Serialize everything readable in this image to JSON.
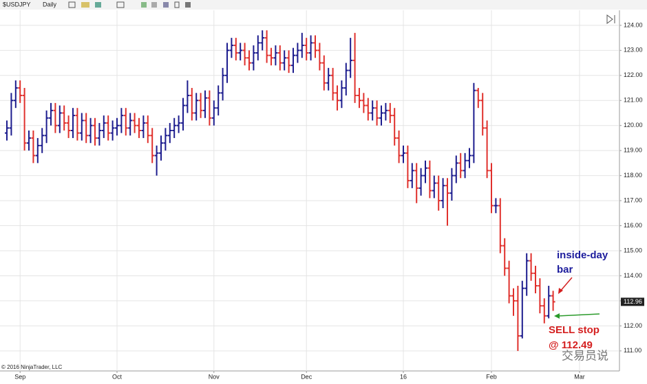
{
  "chart_data": {
    "type": "ohlc",
    "symbol": "$USDJPY",
    "interval": "Daily",
    "copyright": "© 2016 NinjaTrader, LLC",
    "annotations": [
      "inside-day",
      "bar",
      "SELL stop",
      "@ 112.49"
    ],
    "watermark": "交易员说",
    "up_color": "#1c1c8e",
    "down_color": "#e0302c",
    "grid": true,
    "ylim": [
      110.2,
      124.6
    ],
    "yticks": [
      {
        "value": 111,
        "label": "111.00"
      },
      {
        "value": 112,
        "label": "112.00"
      },
      {
        "value": 113,
        "label": "113.00"
      },
      {
        "value": 114,
        "label": "114.00"
      },
      {
        "value": 115,
        "label": "115.00"
      },
      {
        "value": 116,
        "label": "116.00"
      },
      {
        "value": 117,
        "label": "117.00"
      },
      {
        "value": 118,
        "label": "118.00"
      },
      {
        "value": 119,
        "label": "119.00"
      },
      {
        "value": 120,
        "label": "120.00"
      },
      {
        "value": 121,
        "label": "121.00"
      },
      {
        "value": 122,
        "label": "122.00"
      },
      {
        "value": 123,
        "label": "123.00"
      },
      {
        "value": 124,
        "label": "124.00"
      }
    ],
    "categories": [
      null,
      null,
      null,
      "Sep",
      null,
      null,
      null,
      null,
      null,
      null,
      null,
      null,
      null,
      null,
      null,
      null,
      null,
      null,
      null,
      null,
      null,
      null,
      null,
      null,
      null,
      "Oct",
      null,
      null,
      null,
      null,
      null,
      null,
      null,
      null,
      null,
      null,
      null,
      null,
      null,
      null,
      null,
      null,
      null,
      null,
      null,
      null,
      null,
      "Nov",
      null,
      null,
      null,
      null,
      null,
      null,
      null,
      null,
      null,
      null,
      null,
      null,
      null,
      null,
      null,
      null,
      null,
      null,
      null,
      null,
      "Dec",
      null,
      null,
      null,
      null,
      null,
      null,
      null,
      null,
      null,
      null,
      null,
      null,
      null,
      null,
      null,
      null,
      null,
      null,
      null,
      null,
      null,
      "16",
      null,
      null,
      null,
      null,
      null,
      null,
      null,
      null,
      null,
      null,
      null,
      null,
      null,
      null,
      null,
      null,
      null,
      null,
      null,
      "Feb",
      null,
      null,
      null,
      null,
      null,
      null,
      null,
      null,
      null,
      null,
      null,
      null,
      null,
      null,
      null,
      null,
      null,
      null,
      null,
      "Mar",
      null
    ],
    "open": [
      119.7,
      119.9,
      121.0,
      121.5,
      121.2,
      119.3,
      119.5,
      118.8,
      119.2,
      119.6,
      120.3,
      120.6,
      120.0,
      120.5,
      120.1,
      119.8,
      120.4,
      119.7,
      120.2,
      119.6,
      120.0,
      119.5,
      119.8,
      120.1,
      119.7,
      119.9,
      120.0,
      120.4,
      119.9,
      120.2,
      120.0,
      119.8,
      120.1,
      119.6,
      118.8,
      118.9,
      119.3,
      119.6,
      119.8,
      120.0,
      120.1,
      120.8,
      121.2,
      120.5,
      121.0,
      120.6,
      121.1,
      120.3,
      120.7,
      121.3,
      122.0,
      123.0,
      123.2,
      122.9,
      123.0,
      122.7,
      122.5,
      122.9,
      123.3,
      123.5,
      122.8,
      122.7,
      122.9,
      122.5,
      122.7,
      122.4,
      122.8,
      123.0,
      123.2,
      122.9,
      123.3,
      123.0,
      122.5,
      121.7,
      122.0,
      121.3,
      121.0,
      121.5,
      122.2,
      122.6,
      121.2,
      121.0,
      120.8,
      120.5,
      120.7,
      120.3,
      120.5,
      120.6,
      120.4,
      119.5,
      118.8,
      118.9,
      117.8,
      118.2,
      117.5,
      118.0,
      118.3,
      117.4,
      117.7,
      117.0,
      117.6,
      117.3,
      118.0,
      118.5,
      118.2,
      118.6,
      118.8,
      121.4,
      121.0,
      119.9,
      118.2,
      116.8,
      116.8,
      115.2,
      114.3,
      113.2,
      113.0,
      111.6,
      113.5,
      114.6,
      114.1,
      113.6,
      112.8,
      112.4,
      113.2,
      null,
      null,
      null,
      null,
      null,
      null,
      null
    ],
    "high": [
      120.2,
      121.3,
      121.8,
      121.8,
      121.5,
      119.8,
      119.8,
      119.5,
      119.9,
      120.6,
      120.9,
      120.9,
      120.8,
      120.8,
      120.4,
      120.7,
      120.7,
      120.5,
      120.5,
      120.3,
      120.3,
      120.1,
      120.4,
      120.4,
      120.2,
      120.3,
      120.7,
      120.7,
      120.5,
      120.5,
      120.3,
      120.4,
      120.4,
      119.9,
      119.2,
      119.6,
      119.9,
      120.1,
      120.3,
      120.4,
      121.1,
      121.8,
      121.5,
      121.3,
      121.3,
      121.4,
      121.4,
      121.0,
      121.6,
      122.3,
      123.3,
      123.5,
      123.5,
      123.3,
      123.3,
      123.0,
      123.2,
      123.6,
      123.8,
      123.8,
      123.1,
      123.2,
      123.2,
      123.0,
      123.0,
      123.1,
      123.3,
      123.7,
      123.5,
      123.6,
      123.6,
      123.3,
      122.8,
      122.3,
      122.3,
      121.6,
      121.8,
      122.5,
      123.5,
      123.7,
      121.5,
      121.3,
      121.1,
      121.0,
      121.0,
      120.8,
      120.9,
      120.9,
      120.7,
      119.8,
      119.2,
      119.2,
      118.5,
      118.5,
      118.3,
      118.6,
      118.6,
      118.0,
      118.0,
      117.9,
      117.9,
      118.3,
      118.8,
      118.9,
      118.9,
      119.1,
      121.7,
      121.5,
      121.3,
      120.2,
      118.5,
      117.1,
      117.1,
      115.5,
      114.6,
      113.5,
      113.6,
      113.8,
      114.9,
      114.9,
      114.4,
      113.9,
      113.1,
      113.6,
      113.4,
      null,
      null,
      null,
      null,
      null,
      null,
      null
    ],
    "low": [
      119.4,
      119.6,
      120.7,
      120.9,
      119.0,
      119.0,
      118.5,
      118.5,
      118.9,
      119.3,
      120.0,
      119.7,
      119.7,
      119.8,
      119.5,
      119.5,
      119.4,
      119.4,
      119.3,
      119.3,
      119.2,
      119.2,
      119.5,
      119.4,
      119.4,
      119.6,
      119.7,
      119.6,
      119.6,
      119.7,
      119.5,
      119.5,
      119.3,
      118.5,
      118.0,
      118.6,
      119.0,
      119.3,
      119.5,
      119.7,
      119.8,
      120.5,
      120.2,
      120.2,
      120.3,
      120.3,
      120.0,
      120.0,
      120.4,
      121.0,
      121.7,
      122.7,
      122.6,
      122.6,
      122.4,
      122.2,
      122.2,
      122.6,
      123.0,
      122.5,
      122.4,
      122.4,
      122.2,
      122.2,
      122.1,
      122.1,
      122.5,
      122.7,
      122.6,
      122.6,
      122.7,
      122.2,
      121.4,
      121.4,
      121.0,
      120.6,
      120.7,
      121.2,
      121.9,
      120.9,
      120.7,
      120.5,
      120.2,
      120.2,
      120.0,
      120.0,
      120.2,
      120.1,
      119.2,
      118.5,
      118.5,
      117.5,
      117.5,
      116.9,
      117.2,
      117.7,
      117.1,
      117.1,
      116.6,
      116.7,
      116.0,
      117.0,
      117.7,
      117.9,
      117.9,
      118.3,
      118.5,
      120.7,
      119.6,
      117.9,
      116.5,
      116.5,
      114.9,
      114.0,
      112.9,
      112.4,
      111.0,
      111.5,
      113.2,
      113.8,
      113.3,
      112.5,
      112.1,
      112.3,
      112.6,
      null,
      null,
      null,
      null,
      null,
      null,
      null
    ],
    "close": [
      119.9,
      121.0,
      121.5,
      121.2,
      119.3,
      119.5,
      118.8,
      119.2,
      119.6,
      120.3,
      120.6,
      120.0,
      120.5,
      120.1,
      119.8,
      120.4,
      119.7,
      120.2,
      119.6,
      120.0,
      119.5,
      119.8,
      120.1,
      119.7,
      119.9,
      120.0,
      120.4,
      119.9,
      120.2,
      120.0,
      119.8,
      120.1,
      119.6,
      118.8,
      118.9,
      119.3,
      119.6,
      119.8,
      120.0,
      120.1,
      120.8,
      121.2,
      120.5,
      121.0,
      120.6,
      121.1,
      120.3,
      120.7,
      121.3,
      122.0,
      123.0,
      123.2,
      122.9,
      123.0,
      122.7,
      122.5,
      122.9,
      123.3,
      123.5,
      122.8,
      122.7,
      122.9,
      122.5,
      122.7,
      122.4,
      122.8,
      123.0,
      123.2,
      122.9,
      123.3,
      123.0,
      122.5,
      121.7,
      122.0,
      121.3,
      121.0,
      121.5,
      122.2,
      122.6,
      121.2,
      121.0,
      120.8,
      120.5,
      120.7,
      120.3,
      120.5,
      120.6,
      120.4,
      119.5,
      118.8,
      118.9,
      117.8,
      118.2,
      117.5,
      118.0,
      118.3,
      117.4,
      117.7,
      117.0,
      117.6,
      117.3,
      118.0,
      118.5,
      118.2,
      118.6,
      118.8,
      121.4,
      121.0,
      119.9,
      118.2,
      116.8,
      116.8,
      115.2,
      114.3,
      113.2,
      113.0,
      111.6,
      113.5,
      114.6,
      114.1,
      113.6,
      112.8,
      112.4,
      113.2,
      112.96,
      null,
      null,
      null,
      null,
      null,
      null,
      null
    ]
  }
}
